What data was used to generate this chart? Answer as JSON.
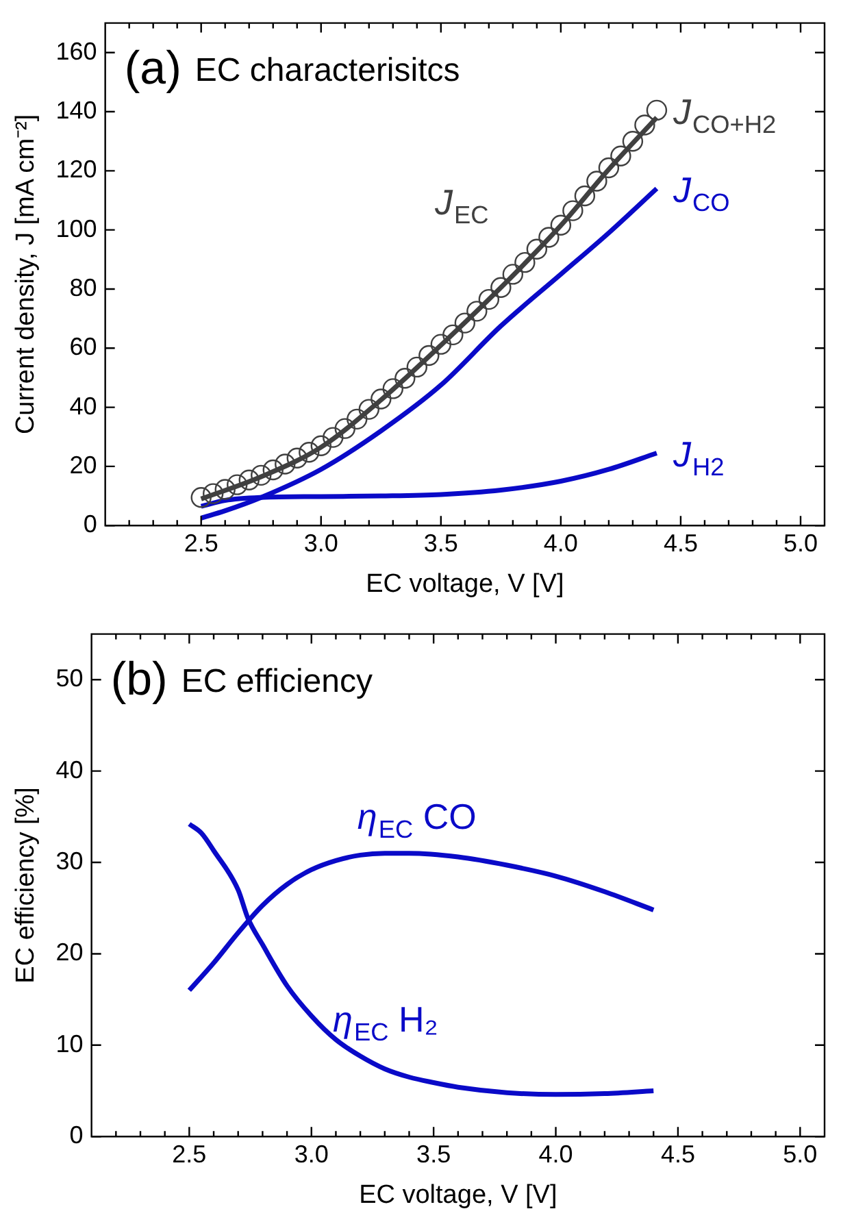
{
  "chart_data": [
    {
      "type": "line",
      "title": "(a) EC characterisitcs",
      "xlabel": "EC voltage, V [V]",
      "ylabel": "Current density, J [mA cm⁻²]",
      "xlim": [
        2.1,
        5.1
      ],
      "ylim": [
        0,
        170
      ],
      "xticks": [
        {
          "value": 2.2,
          "label": null
        },
        {
          "value": 2.3,
          "label": null
        },
        {
          "value": 2.4,
          "label": null
        },
        2.5,
        {
          "value": 2.6,
          "label": null
        },
        {
          "value": 2.7,
          "label": null
        },
        {
          "value": 2.8,
          "label": null
        },
        {
          "value": 2.9,
          "label": null
        },
        {
          "value": 3,
          "label": "3.0"
        },
        {
          "value": 3.1,
          "label": null
        },
        {
          "value": 3.2,
          "label": null
        },
        {
          "value": 3.3,
          "label": null
        },
        {
          "value": 3.4,
          "label": null
        },
        3.5,
        {
          "value": 3.6,
          "label": null
        },
        {
          "value": 3.7,
          "label": null
        },
        {
          "value": 3.8,
          "label": null
        },
        {
          "value": 3.9,
          "label": null
        },
        {
          "value": 4,
          "label": "4.0"
        },
        {
          "value": 4.1,
          "label": null
        },
        {
          "value": 4.2,
          "label": null
        },
        {
          "value": 4.3,
          "label": null
        },
        {
          "value": 4.4,
          "label": null
        },
        4.5,
        {
          "value": 4.6,
          "label": null
        },
        {
          "value": 4.7,
          "label": null
        },
        {
          "value": 4.8,
          "label": null
        },
        {
          "value": 4.9,
          "label": null
        },
        {
          "value": 5,
          "label": "5.0"
        }
      ],
      "yticks": [
        0,
        20,
        40,
        60,
        80,
        100,
        120,
        140,
        160
      ],
      "grid": false,
      "legend": false,
      "series": [
        {
          "name": "J$_{CO+H2}$",
          "type": "scatter",
          "marker": "circle",
          "color": "#404040",
          "x": [
            2.5,
            2.55,
            2.6,
            2.65,
            2.7,
            2.75,
            2.8,
            2.85,
            2.9,
            2.95,
            3.0,
            3.05,
            3.1,
            3.15,
            3.2,
            3.25,
            3.3,
            3.35,
            3.4,
            3.45,
            3.5,
            3.55,
            3.6,
            3.65,
            3.7,
            3.75,
            3.8,
            3.85,
            3.9,
            3.95,
            4.0,
            4.05,
            4.1,
            4.15,
            4.2,
            4.25,
            4.3,
            4.35,
            4.4
          ],
          "values": [
            9.5,
            10.8,
            12.2,
            13.8,
            15.4,
            17,
            18.8,
            20.8,
            22.8,
            24.8,
            27,
            29.8,
            32.8,
            36,
            39.3,
            42.8,
            46.3,
            49.8,
            53.6,
            57.5,
            61.3,
            64.5,
            68.5,
            72.5,
            76.5,
            80.5,
            85,
            89,
            93.5,
            97.5,
            101.6,
            106.5,
            111.5,
            116.5,
            121,
            125,
            130,
            135.5,
            140.5
          ]
        },
        {
          "name": "J$_{EC}$",
          "type": "line",
          "marker": "none",
          "color": "#404040",
          "x": [
            2.5,
            2.75,
            3.0,
            3.25,
            3.5,
            3.75,
            4.0,
            4.2,
            4.4
          ],
          "values": [
            9,
            16.5,
            26.5,
            42.5,
            61,
            80.5,
            101.5,
            120.5,
            138
          ]
        },
        {
          "name": "J$_{CO}$",
          "type": "line",
          "marker": "none",
          "color": "#0a0ac8",
          "x": [
            2.5,
            2.6,
            2.75,
            3.0,
            3.25,
            3.5,
            3.75,
            4.0,
            4.2,
            4.4
          ],
          "values": [
            2.5,
            5,
            9.5,
            19,
            32,
            47.5,
            67.5,
            85,
            99,
            114
          ]
        },
        {
          "name": "J$_{H2}$",
          "type": "line",
          "marker": "none",
          "color": "#0a0ac8",
          "x": [
            2.5,
            2.6,
            2.75,
            3.0,
            3.25,
            3.5,
            3.75,
            4.0,
            4.2,
            4.4
          ],
          "values": [
            6.5,
            8.5,
            9.5,
            9.8,
            10,
            10.5,
            12,
            15,
            19,
            24.5
          ]
        }
      ]
    },
    {
      "type": "line",
      "title": "(b) EC efficiency",
      "xlabel": "EC voltage, V [V]",
      "ylabel": "EC efficiency [%]",
      "xlim": [
        2.1,
        5.1
      ],
      "ylim": [
        0,
        55
      ],
      "xticks": [
        {
          "value": 2.2,
          "label": null
        },
        {
          "value": 2.3,
          "label": null
        },
        {
          "value": 2.4,
          "label": null
        },
        2.5,
        {
          "value": 2.6,
          "label": null
        },
        {
          "value": 2.7,
          "label": null
        },
        {
          "value": 2.8,
          "label": null
        },
        {
          "value": 2.9,
          "label": null
        },
        {
          "value": 3,
          "label": "3.0"
        },
        {
          "value": 3.1,
          "label": null
        },
        {
          "value": 3.2,
          "label": null
        },
        {
          "value": 3.3,
          "label": null
        },
        {
          "value": 3.4,
          "label": null
        },
        3.5,
        {
          "value": 3.6,
          "label": null
        },
        {
          "value": 3.7,
          "label": null
        },
        {
          "value": 3.8,
          "label": null
        },
        {
          "value": 3.9,
          "label": null
        },
        {
          "value": 4,
          "label": "4.0"
        },
        {
          "value": 4.1,
          "label": null
        },
        {
          "value": 4.2,
          "label": null
        },
        {
          "value": 4.3,
          "label": null
        },
        {
          "value": 4.4,
          "label": null
        },
        4.5,
        {
          "value": 4.6,
          "label": null
        },
        {
          "value": 4.7,
          "label": null
        },
        {
          "value": 4.8,
          "label": null
        },
        {
          "value": 4.9,
          "label": null
        },
        {
          "value": 5,
          "label": "5.0"
        }
      ],
      "yticks": [
        0,
        10,
        20,
        30,
        40,
        50
      ],
      "grid": false,
      "legend": false,
      "series": [
        {
          "name": "η$_{EC}$ CO",
          "type": "line",
          "marker": "none",
          "color": "#0a0ac8",
          "x": [
            2.5,
            2.6,
            2.7,
            2.8,
            2.9,
            3.0,
            3.1,
            3.2,
            3.3,
            3.4,
            3.6,
            3.8,
            4.0,
            4.2,
            4.4
          ],
          "values": [
            16.0,
            19.0,
            22.3,
            25.3,
            27.6,
            29.2,
            30.2,
            30.8,
            31.0,
            31.0,
            30.6,
            29.7,
            28.5,
            26.8,
            24.8
          ]
        },
        {
          "name": "η$_{EC}$ H₂",
          "type": "line",
          "marker": "none",
          "color": "#0a0ac8",
          "x": [
            2.5,
            2.55,
            2.6,
            2.7,
            2.74,
            2.8,
            2.9,
            3.0,
            3.1,
            3.2,
            3.3,
            3.4,
            3.5,
            3.6,
            3.8,
            4.0,
            4.2,
            4.4
          ],
          "values": [
            34.2,
            33.2,
            31.3,
            27.0,
            23.9,
            21.0,
            16.5,
            13.2,
            10.6,
            8.8,
            7.4,
            6.5,
            5.9,
            5.4,
            4.8,
            4.6,
            4.7,
            5.0
          ]
        }
      ]
    }
  ]
}
